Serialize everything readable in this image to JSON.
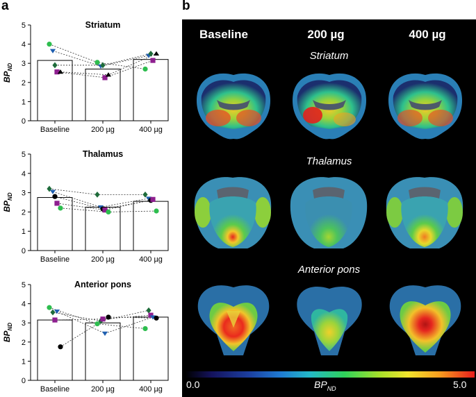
{
  "panel_a_label": "a",
  "panel_b_label": "b",
  "chart_data": [
    {
      "type": "bar",
      "title": "Striatum",
      "ylabel": "BP",
      "ylabel_sub": "ND",
      "categories": [
        "Baseline",
        "200 µg",
        "400 µg"
      ],
      "values": [
        3.15,
        2.7,
        3.2
      ],
      "ylim": [
        0,
        5
      ],
      "yticks": [
        "0",
        "1",
        "2",
        "3",
        "4",
        "5"
      ],
      "subjects": [
        {
          "marker": "circle",
          "color": "#2dbd4e",
          "values": [
            4.0,
            3.05,
            2.7
          ]
        },
        {
          "marker": "triangle-down",
          "color": "#1f5fb0",
          "values": [
            3.65,
            2.85,
            3.4
          ]
        },
        {
          "marker": "diamond",
          "color": "#1e6b3a",
          "values": [
            2.9,
            2.9,
            3.5
          ]
        },
        {
          "marker": "square",
          "color": "#8e1f8f",
          "values": [
            2.55,
            2.25,
            3.15
          ]
        },
        {
          "marker": "triangle-up",
          "color": "#000000",
          "values": [
            2.55,
            2.4,
            3.5
          ]
        }
      ]
    },
    {
      "type": "bar",
      "title": "Thalamus",
      "ylabel": "BP",
      "ylabel_sub": "ND",
      "categories": [
        "Baseline",
        "200 µg",
        "400 µg"
      ],
      "values": [
        2.75,
        2.25,
        2.55
      ],
      "ylim": [
        0,
        5
      ],
      "yticks": [
        "0",
        "1",
        "2",
        "3",
        "4",
        "5"
      ],
      "subjects": [
        {
          "marker": "diamond",
          "color": "#1e6b3a",
          "values": [
            3.2,
            2.9,
            2.9
          ]
        },
        {
          "marker": "triangle-down",
          "color": "#1f5fb0",
          "values": [
            3.05,
            2.25,
            2.7
          ]
        },
        {
          "marker": "circle",
          "color": "#000000",
          "values": [
            2.8,
            2.15,
            2.6
          ]
        },
        {
          "marker": "square",
          "color": "#8e1f8f",
          "values": [
            2.45,
            2.1,
            2.65
          ]
        },
        {
          "marker": "circle",
          "color": "#2dbd4e",
          "values": [
            2.2,
            2.0,
            2.05
          ]
        }
      ]
    },
    {
      "type": "bar",
      "title": "Anterior pons",
      "ylabel": "BP",
      "ylabel_sub": "ND",
      "categories": [
        "Baseline",
        "200 µg",
        "400 µg"
      ],
      "values": [
        3.15,
        3.0,
        3.3
      ],
      "ylim": [
        0,
        5
      ],
      "yticks": [
        "0",
        "1",
        "2",
        "3",
        "4",
        "5"
      ],
      "subjects": [
        {
          "marker": "circle",
          "color": "#2dbd4e",
          "values": [
            3.8,
            2.95,
            2.7
          ]
        },
        {
          "marker": "diamond",
          "color": "#1e6b3a",
          "values": [
            3.55,
            3.1,
            3.65
          ]
        },
        {
          "marker": "square",
          "color": "#8e1f8f",
          "values": [
            3.15,
            3.2,
            3.4
          ]
        },
        {
          "marker": "triangle-down",
          "color": "#1f5fb0",
          "values": [
            3.6,
            2.45,
            3.3
          ]
        },
        {
          "marker": "circle",
          "color": "#000000",
          "values": [
            1.75,
            3.3,
            3.25
          ]
        }
      ]
    }
  ],
  "panel_b": {
    "columns": [
      "Baseline",
      "200 µg",
      "400 µg"
    ],
    "rows": [
      "Striatum",
      "Thalamus",
      "Anterior pons"
    ],
    "colorbar": {
      "label": "BP",
      "label_sub": "ND",
      "min_label": "0.0",
      "max_label": "5.0"
    }
  }
}
